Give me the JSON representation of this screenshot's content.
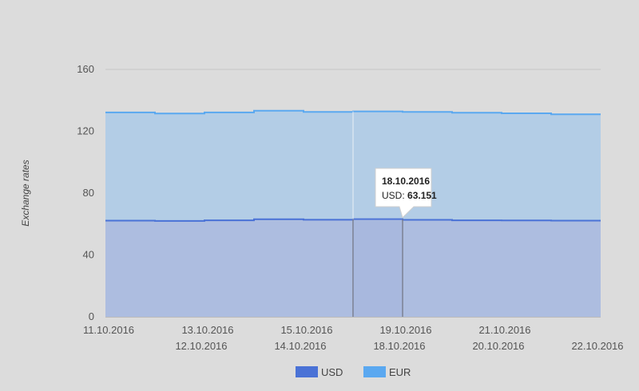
{
  "chart_data": {
    "type": "area",
    "stacked": true,
    "ylabel": "Exchange rates",
    "xlabel": "",
    "ylim": [
      0,
      160
    ],
    "y_ticks": [
      "0",
      "40",
      "80",
      "120",
      "160"
    ],
    "categories": [
      "11.10.2016",
      "12.10.2016",
      "13.10.2016",
      "14.10.2016",
      "15.10.2016",
      "18.10.2016",
      "19.10.2016",
      "20.10.2016",
      "21.10.2016",
      "22.10.2016"
    ],
    "series": [
      {
        "name": "USD",
        "color": "#4a72d6",
        "values": [
          62.2,
          62.0,
          62.4,
          63.1,
          62.8,
          63.151,
          62.7,
          62.4,
          62.3,
          62.2
        ]
      },
      {
        "name": "EUR",
        "color": "#5aa8f0",
        "values": [
          70.0,
          69.5,
          69.8,
          70.2,
          69.7,
          69.7,
          69.8,
          69.6,
          69.3,
          68.8
        ]
      }
    ],
    "grid": true,
    "legend": "bottom-center",
    "tooltip": {
      "index": 5,
      "date": "18.10.2016",
      "label": "USD: ",
      "value": "63.151"
    }
  }
}
